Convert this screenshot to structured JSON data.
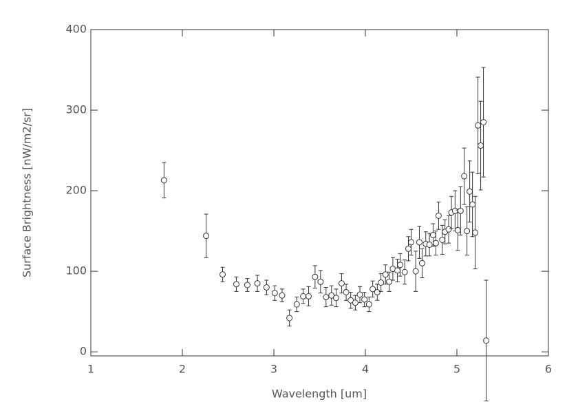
{
  "chart_data": {
    "type": "scatter",
    "xlabel": "Wavelength [um]",
    "ylabel": "Surface Brightness [nW/m2/sr]",
    "xlim": [
      1,
      6
    ],
    "ylim": [
      -5,
      400
    ],
    "xticks": [
      1,
      2,
      3,
      4,
      5,
      6
    ],
    "yticks": [
      0,
      100,
      200,
      300,
      400
    ],
    "color": "#333333",
    "x": [
      1.8,
      2.26,
      2.44,
      2.59,
      2.71,
      2.82,
      2.92,
      3.01,
      3.09,
      3.17,
      3.25,
      3.32,
      3.38,
      3.45,
      3.51,
      3.57,
      3.63,
      3.68,
      3.74,
      3.79,
      3.84,
      3.89,
      3.94,
      3.99,
      4.04,
      4.08,
      4.13,
      4.17,
      4.22,
      4.26,
      4.3,
      4.35,
      4.38,
      4.43,
      4.47,
      4.5,
      4.55,
      4.59,
      4.62,
      4.66,
      4.7,
      4.74,
      4.77,
      4.8,
      4.84,
      4.87,
      4.91,
      4.94,
      4.98,
      5.01,
      5.04,
      5.08,
      5.11,
      5.14,
      5.17,
      5.2,
      5.23,
      5.26,
      5.29,
      5.32
    ],
    "values": [
      213,
      144,
      96,
      84,
      83,
      85,
      80,
      73,
      70,
      42,
      59,
      69,
      69,
      93,
      87,
      68,
      70,
      67,
      85,
      74,
      64,
      61,
      71,
      65,
      59,
      78,
      74,
      86,
      96,
      87,
      103,
      101,
      108,
      99,
      128,
      136,
      100,
      136,
      110,
      134,
      133,
      145,
      135,
      169,
      139,
      149,
      152,
      173,
      175,
      151,
      175,
      218,
      150,
      199,
      183,
      148,
      281,
      256,
      285,
      14
    ],
    "errors": [
      22,
      27,
      9,
      9,
      8,
      10,
      9,
      9,
      8,
      10,
      9,
      9,
      12,
      14,
      14,
      12,
      12,
      11,
      12,
      10,
      10,
      9,
      10,
      9,
      9,
      10,
      10,
      11,
      12,
      12,
      14,
      14,
      14,
      15,
      15,
      16,
      25,
      20,
      18,
      15,
      14,
      14,
      15,
      17,
      18,
      15,
      17,
      20,
      25,
      25,
      30,
      35,
      30,
      38,
      40,
      45,
      60,
      55,
      68,
      75
    ]
  }
}
